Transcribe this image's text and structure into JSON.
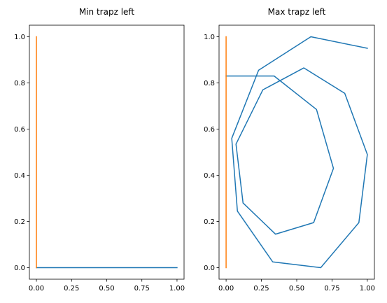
{
  "chart_data": [
    {
      "type": "line",
      "title": "Min trapz left",
      "xlabel": "",
      "ylabel": "",
      "xlim": [
        -0.05,
        1.05
      ],
      "ylim": [
        -0.05,
        1.05
      ],
      "xticks": [
        0.0,
        0.25,
        0.5,
        0.75,
        1.0
      ],
      "xtick_labels": [
        "0.00",
        "0.25",
        "0.50",
        "0.75",
        "1.00"
      ],
      "yticks": [
        0.0,
        0.2,
        0.4,
        0.6,
        0.8,
        1.0
      ],
      "ytick_labels": [
        "0.0",
        "0.2",
        "0.4",
        "0.6",
        "0.8",
        "1.0"
      ],
      "grid": false,
      "series": [
        {
          "color": "#1f77b4",
          "x": [
            0.0,
            1.0
          ],
          "y": [
            0.0,
            0.0
          ]
        },
        {
          "color": "#ff7f0e",
          "x": [
            0.0,
            0.0
          ],
          "y": [
            0.0,
            1.0
          ]
        }
      ]
    },
    {
      "type": "line",
      "title": "Max trapz left",
      "xlabel": "",
      "ylabel": "",
      "xlim": [
        -0.05,
        1.05
      ],
      "ylim": [
        -0.05,
        1.05
      ],
      "xticks": [
        0.0,
        0.25,
        0.5,
        0.75,
        1.0
      ],
      "xtick_labels": [
        "0.00",
        "0.25",
        "0.50",
        "0.75",
        "1.00"
      ],
      "yticks": [
        0.0,
        0.2,
        0.4,
        0.6,
        0.8,
        1.0
      ],
      "ytick_labels": [
        "0.0",
        "0.2",
        "0.4",
        "0.6",
        "0.8",
        "1.0"
      ],
      "grid": false,
      "series": [
        {
          "color": "#1f77b4",
          "x": [
            1.0,
            0.6,
            0.23,
            0.04,
            0.08,
            0.33,
            0.67,
            0.94,
            1.0,
            0.84,
            0.55,
            0.26,
            0.07,
            0.12,
            0.35,
            0.62,
            0.76,
            0.64,
            0.34,
            0.0
          ],
          "y": [
            0.95,
            1.0,
            0.855,
            0.56,
            0.245,
            0.025,
            0.0,
            0.195,
            0.49,
            0.755,
            0.865,
            0.77,
            0.535,
            0.28,
            0.145,
            0.195,
            0.43,
            0.685,
            0.83,
            0.83
          ]
        },
        {
          "color": "#ff7f0e",
          "x": [
            0.0,
            0.0
          ],
          "y": [
            0.0,
            1.0
          ]
        }
      ]
    }
  ]
}
